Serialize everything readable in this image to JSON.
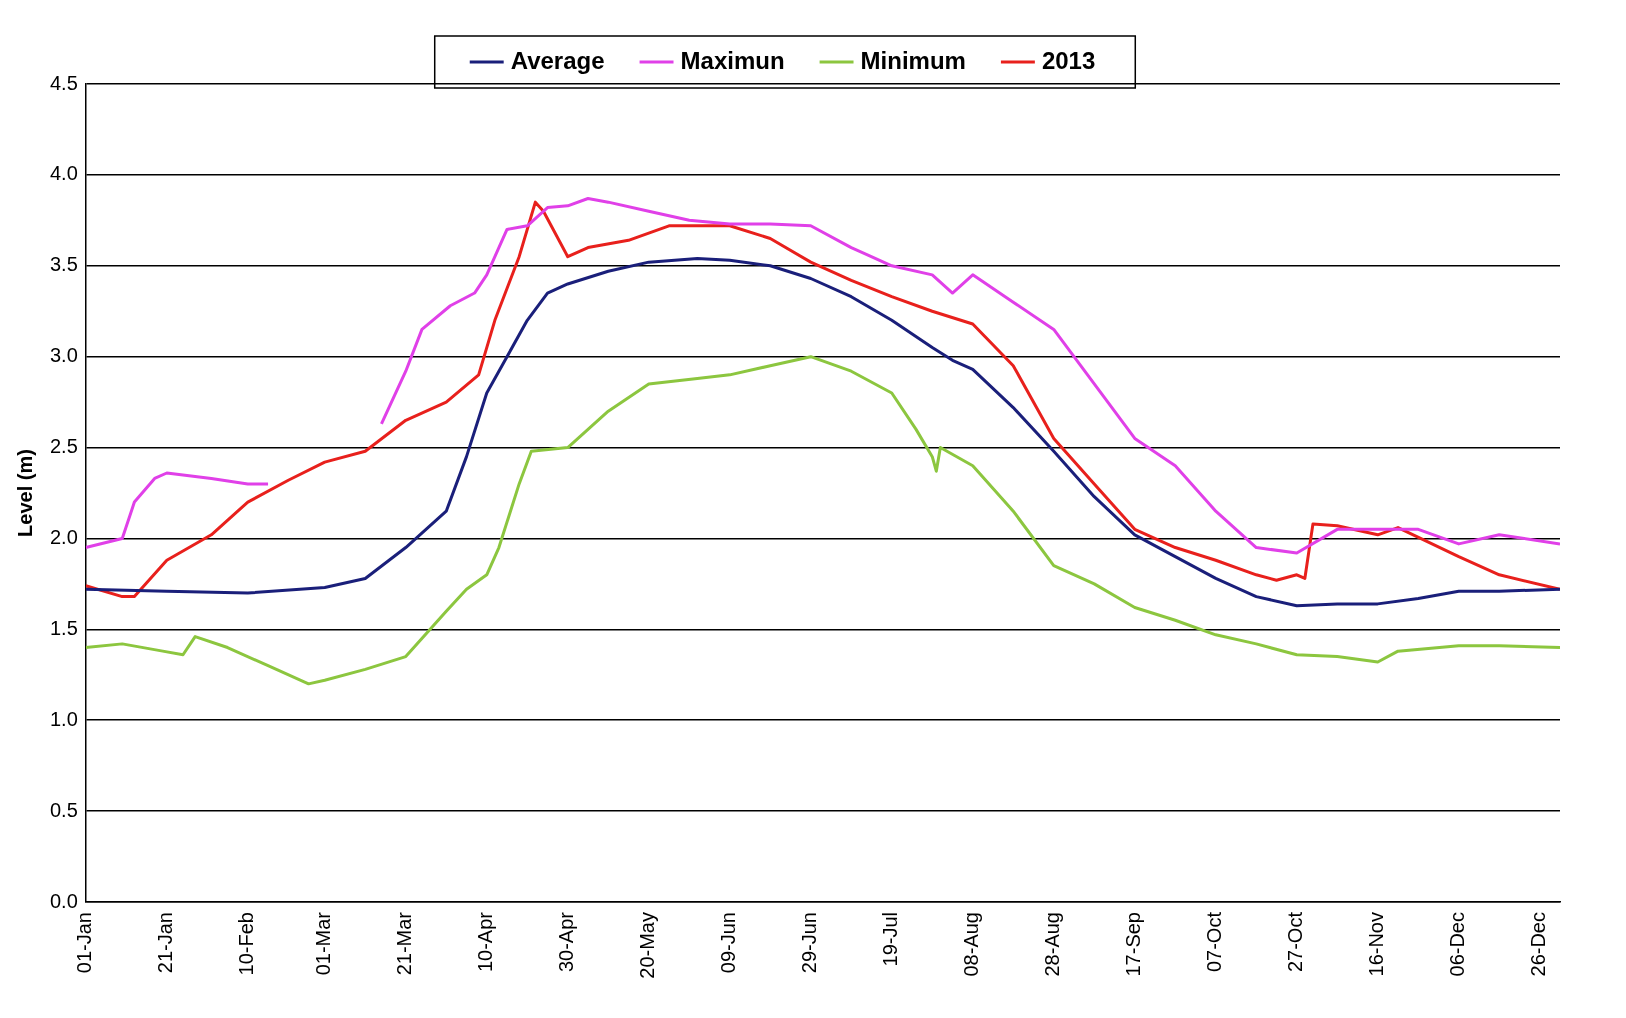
{
  "chart_data": {
    "type": "line",
    "ylabel": "Level (m)",
    "legend": "top",
    "grid": "y",
    "marker": "none",
    "line_style": "solid",
    "xlim": [
      "--01-01",
      "--12-31"
    ],
    "xticks": [
      {
        "value": "--01-01",
        "label": "01-Jan"
      },
      {
        "value": "--01-21",
        "label": "21-Jan"
      },
      {
        "value": "--02-10",
        "label": "10-Feb"
      },
      {
        "value": "--03-01",
        "label": "01-Mar"
      },
      {
        "value": "--03-21",
        "label": "21-Mar"
      },
      {
        "value": "--04-10",
        "label": "10-Apr"
      },
      {
        "value": "--04-30",
        "label": "30-Apr"
      },
      {
        "value": "--05-20",
        "label": "20-May"
      },
      {
        "value": "--06-09",
        "label": "09-Jun"
      },
      {
        "value": "--06-29",
        "label": "29-Jun"
      },
      {
        "value": "--07-19",
        "label": "19-Jul"
      },
      {
        "value": "--08-08",
        "label": "08-Aug"
      },
      {
        "value": "--08-28",
        "label": "28-Aug"
      },
      {
        "value": "--09-17",
        "label": "17-Sep"
      },
      {
        "value": "--10-07",
        "label": "07-Oct"
      },
      {
        "value": "--10-27",
        "label": "27-Oct"
      },
      {
        "value": "--11-16",
        "label": "16-Nov"
      },
      {
        "value": "--12-06",
        "label": "06-Dec"
      },
      {
        "value": "--12-26",
        "label": "26-Dec"
      }
    ],
    "ylim": [
      0,
      4.5
    ],
    "yticks": [
      {
        "value": 0,
        "label": "0.0"
      },
      {
        "value": 0.5,
        "label": "0.5"
      },
      {
        "value": 1,
        "label": "1.0"
      },
      {
        "value": 1.5,
        "label": "1.5"
      },
      {
        "value": 2,
        "label": "2.0"
      },
      {
        "value": 2.5,
        "label": "2.5"
      },
      {
        "value": 3,
        "label": "3.0"
      },
      {
        "value": 3.5,
        "label": "3.5"
      },
      {
        "value": 4,
        "label": "4.0"
      },
      {
        "value": 4.5,
        "label": "4.5"
      }
    ],
    "series": [
      {
        "name": "Average",
        "color": "#1a1f7a",
        "x": [
          "--01-01",
          "--01-21",
          "--02-10",
          "--03-01",
          "--03-11",
          "--03-21",
          "--03-31",
          "--04-05",
          "--04-10",
          "--04-15",
          "--04-20",
          "--04-25",
          "--04-30",
          "--05-10",
          "--05-20",
          "--06-01",
          "--06-09",
          "--06-19",
          "--06-29",
          "--07-09",
          "--07-19",
          "--07-29",
          "--08-03",
          "--08-08",
          "--08-18",
          "--08-28",
          "--09-07",
          "--09-17",
          "--09-27",
          "--10-07",
          "--10-17",
          "--10-27",
          "--11-06",
          "--11-16",
          "--11-26",
          "--12-06",
          "--12-16",
          "--12-31"
        ],
        "values": [
          1.72,
          1.71,
          1.7,
          1.73,
          1.78,
          1.95,
          2.15,
          2.45,
          2.8,
          3.0,
          3.2,
          3.35,
          3.4,
          3.47,
          3.52,
          3.54,
          3.53,
          3.5,
          3.43,
          3.33,
          3.2,
          3.05,
          2.98,
          2.93,
          2.72,
          2.48,
          2.23,
          2.02,
          1.9,
          1.78,
          1.68,
          1.63,
          1.64,
          1.64,
          1.67,
          1.71,
          1.71,
          1.72
        ]
      },
      {
        "name": "Maximun",
        "color": "#e040e8",
        "x": [
          "--01-01",
          "--01-10",
          "--01-13",
          "--01-18",
          "--01-21",
          "--02-01",
          "--02-10",
          "--02-15",
          "--02-20",
          "--03-01",
          "--03-10",
          "--03-15",
          "--03-21",
          "--03-25",
          "--04-01",
          "--04-07",
          "--04-10",
          "--04-15",
          "--04-20",
          "--04-25",
          "--04-30",
          "--05-05",
          "--05-10",
          "--05-20",
          "--05-30",
          "--06-09",
          "--06-19",
          "--06-29",
          "--07-09",
          "--07-19",
          "--07-29",
          "--08-03",
          "--08-08",
          "--08-18",
          "--08-28",
          "--09-07",
          "--09-17",
          "--09-27",
          "--10-07",
          "--10-17",
          "--10-27",
          "--11-06",
          "--11-16",
          "--11-26",
          "--12-06",
          "--12-16",
          "--12-31"
        ],
        "values": [
          1.95,
          2.0,
          2.2,
          2.33,
          2.36,
          2.33,
          2.3,
          2.3,
          null,
          null,
          null,
          2.63,
          2.92,
          3.15,
          3.28,
          3.35,
          3.45,
          3.7,
          3.72,
          3.82,
          3.83,
          3.87,
          3.85,
          3.8,
          3.75,
          3.73,
          3.73,
          3.72,
          3.6,
          3.5,
          3.45,
          3.35,
          3.45,
          3.3,
          3.15,
          2.85,
          2.55,
          2.4,
          2.15,
          1.95,
          1.92,
          2.05,
          2.05,
          2.05,
          1.97,
          2.02,
          1.97
        ]
      },
      {
        "name": "Minimum",
        "color": "#8cc63f",
        "x": [
          "--01-01",
          "--01-10",
          "--01-20",
          "--01-25",
          "--01-28",
          "--02-05",
          "--02-15",
          "--02-25",
          "--03-01",
          "--03-11",
          "--03-21",
          "--03-31",
          "--04-05",
          "--04-10",
          "--04-13",
          "--04-18",
          "--04-21",
          "--04-30",
          "--05-10",
          "--05-20",
          "--06-01",
          "--06-09",
          "--06-19",
          "--06-29",
          "--07-09",
          "--07-19",
          "--07-25",
          "--07-29",
          "--07-30",
          "--07-31",
          "--08-08",
          "--08-18",
          "--08-28",
          "--09-07",
          "--09-17",
          "--09-27",
          "--10-07",
          "--10-17",
          "--10-27",
          "--11-06",
          "--11-16",
          "--11-21",
          "--12-06",
          "--12-16",
          "--12-31"
        ],
        "values": [
          1.4,
          1.42,
          1.38,
          1.36,
          1.46,
          1.4,
          1.3,
          1.2,
          1.22,
          1.28,
          1.35,
          1.6,
          1.72,
          1.8,
          1.95,
          2.3,
          2.48,
          2.5,
          2.7,
          2.85,
          2.88,
          2.9,
          2.95,
          3.0,
          2.92,
          2.8,
          2.6,
          2.45,
          2.37,
          2.5,
          2.4,
          2.15,
          1.85,
          1.75,
          1.62,
          1.55,
          1.47,
          1.42,
          1.36,
          1.35,
          1.32,
          1.38,
          1.41,
          1.41,
          1.4
        ]
      },
      {
        "name": "2013",
        "color": "#e8201c",
        "x": [
          "--01-01",
          "--01-10",
          "--01-13",
          "--01-21",
          "--02-01",
          "--02-10",
          "--02-20",
          "--03-01",
          "--03-11",
          "--03-21",
          "--03-31",
          "--04-08",
          "--04-12",
          "--04-18",
          "--04-22",
          "--04-24",
          "--04-30",
          "--05-05",
          "--05-15",
          "--05-25",
          "--06-09",
          "--06-19",
          "--06-29",
          "--07-09",
          "--07-19",
          "--07-29",
          "--08-08",
          "--08-18",
          "--08-28",
          "--09-07",
          "--09-17",
          "--09-27",
          "--10-07",
          "--10-17",
          "--10-22",
          "--10-27",
          "--10-29",
          "--10-31",
          "--11-06",
          "--11-16",
          "--11-21",
          "--12-06",
          "--12-16",
          "--12-31"
        ],
        "values": [
          1.74,
          1.68,
          1.68,
          1.88,
          2.02,
          2.2,
          2.32,
          2.42,
          2.48,
          2.65,
          2.75,
          2.9,
          3.2,
          3.55,
          3.85,
          3.8,
          3.55,
          3.6,
          3.64,
          3.72,
          3.72,
          3.65,
          3.52,
          3.42,
          3.33,
          3.25,
          3.18,
          2.95,
          2.55,
          2.3,
          2.05,
          1.95,
          1.88,
          1.8,
          1.77,
          1.8,
          1.78,
          2.08,
          2.07,
          2.02,
          2.06,
          1.9,
          1.8,
          1.72
        ]
      }
    ]
  }
}
